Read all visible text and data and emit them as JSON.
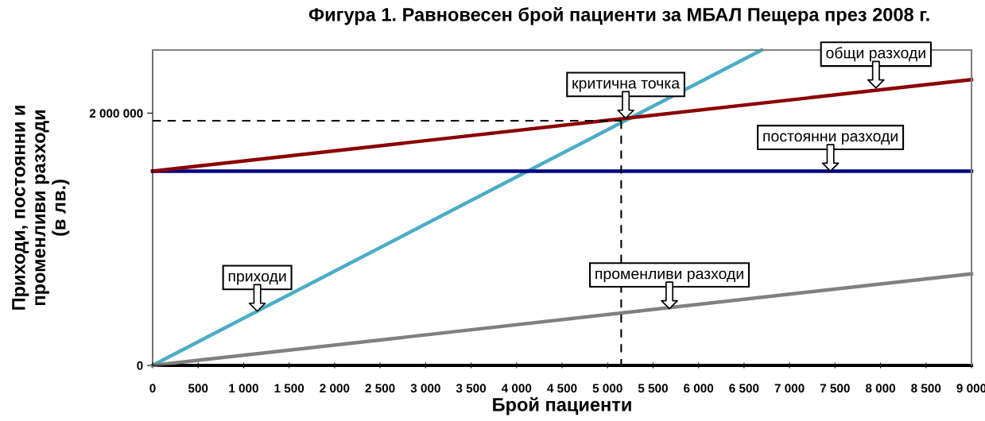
{
  "chart_data": {
    "type": "line",
    "title": "Фигура 1. Равновесен брой пациенти за МБАЛ Пещера през 2008 г.",
    "xlabel": "Брой пациенти",
    "ylabel": "Приходи, постоянни и\nпроменливи разходи\n(в лв.)",
    "series": [
      {
        "color": "#000000",
        "x": [
          0,
          9000
        ],
        "values": [
          0,
          0
        ]
      },
      {
        "color": "#4bacc6",
        "x": [
          0,
          6693
        ],
        "values": [
          0,
          2500000
        ]
      },
      {
        "color": "#808080",
        "x": [
          0,
          9000
        ],
        "values": [
          0,
          726000
        ]
      },
      {
        "color": "#000080",
        "x": [
          0,
          9000
        ],
        "values": [
          1540000,
          1540000
        ]
      },
      {
        "color": "#8b0000",
        "x": [
          0,
          9000
        ],
        "values": [
          1540000,
          2265000
        ]
      },
      {
        "color": "#000000",
        "x": [
          0,
          5150
        ],
        "values": [
          1940000,
          1940000
        ],
        "line_style": "dashed"
      },
      {
        "color": "#000000",
        "x": [
          5150,
          5150
        ],
        "values": [
          1940000,
          0
        ],
        "line_style": "dashed"
      }
    ],
    "annotations": [
      {
        "text": "критична точка",
        "x": 5200,
        "y": 1960000
      },
      {
        "text": "общи разходи",
        "x": 7950,
        "y": 2200000
      },
      {
        "text": "постоянни разходи",
        "x": 7450,
        "y": 1540000
      },
      {
        "text": "приходи",
        "x": 1150,
        "y": 430000
      },
      {
        "text": "променливи разходи",
        "x": 5680,
        "y": 450000
      }
    ],
    "xlim": [
      0,
      9000
    ],
    "xticks": [
      0,
      500,
      {
        "value": 1000,
        "label": "1 000"
      },
      {
        "value": 1500,
        "label": "1 500"
      },
      {
        "value": 2000,
        "label": "2 000"
      },
      {
        "value": 2500,
        "label": "2 500"
      },
      {
        "value": 3000,
        "label": "3 000"
      },
      {
        "value": 3500,
        "label": "3 500"
      },
      {
        "value": 4000,
        "label": "4 000"
      },
      {
        "value": 4500,
        "label": "4 500"
      },
      {
        "value": 5000,
        "label": "5 000"
      },
      {
        "value": 5500,
        "label": "5 500"
      },
      {
        "value": 6000,
        "label": "6 000"
      },
      {
        "value": 6500,
        "label": "6 500"
      },
      {
        "value": 7000,
        "label": "7 000"
      },
      {
        "value": 7500,
        "label": "7 500"
      },
      {
        "value": 8000,
        "label": "8 000"
      },
      {
        "value": 8500,
        "label": "8 500"
      },
      {
        "value": 9000,
        "label": "9 000"
      }
    ],
    "ylim": [
      0,
      2500000
    ],
    "yticks": [
      0,
      {
        "value": 2000000,
        "label": "2 000 000"
      }
    ],
    "grid": false,
    "legend": false,
    "marker": "none",
    "line_style": "solid"
  }
}
